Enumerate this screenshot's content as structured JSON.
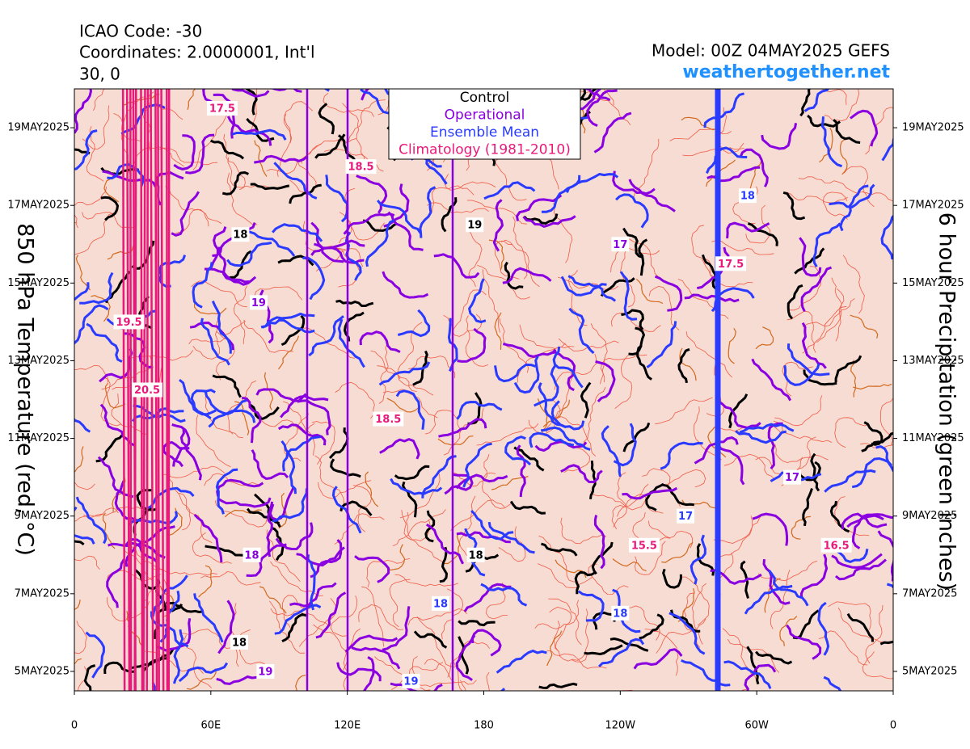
{
  "chart_data": {
    "type": "hovmoller",
    "header_lines": [
      "ICAO Code: -30",
      "Coordinates: 2.0000001, Int'l",
      "30, 0"
    ],
    "model": "Model: 00Z 04MAY2025 GEFS",
    "site": "weathertogether.net",
    "y_label": "850 hPa Temperature (red, °C)",
    "y2_label": "6 hour Precipitation (green inches)",
    "xlim": [
      0,
      360
    ],
    "xticks": [
      0,
      {
        "value": 60,
        "label": "60E"
      },
      {
        "value": 120,
        "label": "120E"
      },
      180,
      {
        "value": 240,
        "label": "120W"
      },
      {
        "value": 300,
        "label": "60W"
      },
      {
        "value": 360,
        "label": "0"
      }
    ],
    "ylim": [
      "2025-05-04T12:00",
      "2025-05-20T00:00"
    ],
    "yticks": [
      {
        "value": "2025-05-05",
        "label": "5MAY2025"
      },
      {
        "value": "2025-05-07",
        "label": "7MAY2025"
      },
      {
        "value": "2025-05-09",
        "label": "9MAY2025"
      },
      {
        "value": "2025-05-11",
        "label": "11MAY2025"
      },
      {
        "value": "2025-05-13",
        "label": "13MAY2025"
      },
      {
        "value": "2025-05-15",
        "label": "15MAY2025"
      },
      {
        "value": "2025-05-17",
        "label": "17MAY2025"
      },
      {
        "value": "2025-05-19",
        "label": "19MAY2025"
      }
    ],
    "series": [
      {
        "name": "Control",
        "color": "#000000",
        "x": [
          73,
          72.5,
          176,
          176.5
        ],
        "y": [
          "2025-05-16T06:00",
          "2025-05-05T18:00",
          "2025-05-16T12:00",
          "2025-05-08T00:00"
        ],
        "values": [
          18,
          18,
          19,
          18
        ]
      },
      {
        "name": "Operational",
        "color": "#8a00e0",
        "x": [
          81,
          84,
          78,
          240,
          315.6
        ],
        "y": [
          "2025-05-14T12:00",
          "2025-05-05T00:00",
          "2025-05-08T00:00",
          "2025-05-16T00:00",
          "2025-05-10T00:00"
        ],
        "values": [
          19,
          19,
          18,
          17,
          17
        ]
      },
      {
        "name": "Ensemble Mean",
        "color": "#2a3bff",
        "x": [
          161,
          296,
          148,
          240,
          268.7
        ],
        "y": [
          "2025-05-06T18:00",
          "2025-05-17T06:00",
          "2025-05-04T18:00",
          "2025-05-06T12:00",
          "2025-05-09T00:00"
        ],
        "values": [
          18,
          18,
          19,
          18,
          17
        ]
      },
      {
        "name": "Climatology (1981-2010)",
        "color": "#e8197a",
        "x": [
          65,
          24,
          32,
          126,
          138,
          250.5,
          335,
          288.6
        ],
        "y": [
          "2025-05-19T12:00",
          "2025-05-14T00:00",
          "2025-05-12T06:00",
          "2025-05-18T00:00",
          "2025-05-11T12:00",
          "2025-05-08T06:00",
          "2025-05-08T06:00",
          "2025-05-15T12:00"
        ],
        "values": [
          17.5,
          19.5,
          20.5,
          18.5,
          18.5,
          15.5,
          16.5,
          17.5
        ]
      }
    ]
  }
}
